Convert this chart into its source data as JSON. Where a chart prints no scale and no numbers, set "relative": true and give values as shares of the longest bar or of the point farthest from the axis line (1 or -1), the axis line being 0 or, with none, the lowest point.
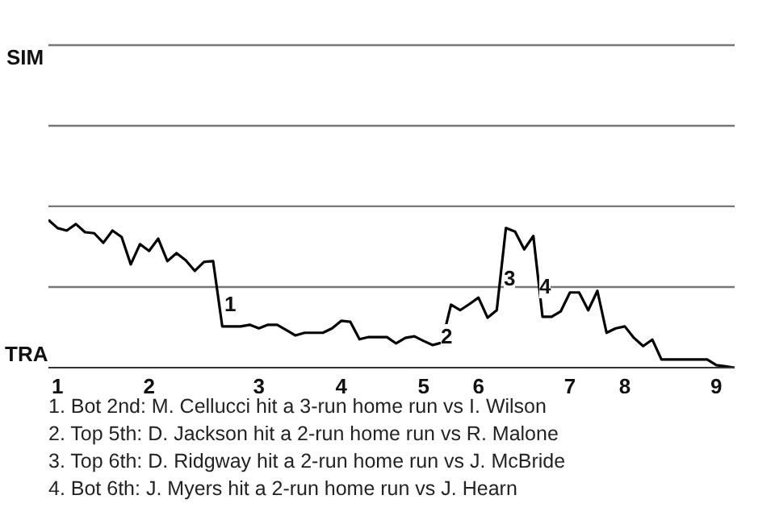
{
  "chart_data": {
    "type": "line",
    "relative": true,
    "categories": [
      null,
      "1",
      null,
      null,
      null,
      null,
      null,
      null,
      null,
      null,
      null,
      "2",
      null,
      null,
      null,
      null,
      null,
      null,
      null,
      null,
      null,
      null,
      null,
      "3",
      null,
      null,
      null,
      null,
      null,
      null,
      null,
      null,
      "4",
      null,
      null,
      null,
      null,
      null,
      null,
      null,
      null,
      "5",
      null,
      null,
      null,
      null,
      null,
      "6",
      null,
      null,
      null,
      null,
      null,
      null,
      null,
      null,
      null,
      "7",
      null,
      null,
      null,
      null,
      null,
      "8",
      null,
      null,
      null,
      null,
      null,
      null,
      null,
      null,
      null,
      "9",
      null,
      null
    ],
    "series": [
      {
        "color": "#000000",
        "values": [
          1,
          0.945,
          0.928,
          0.972,
          0.917,
          0.91,
          0.845,
          0.928,
          0.884,
          0.699,
          0.836,
          0.79,
          0.873,
          0.721,
          0.775,
          0.727,
          0.655,
          0.716,
          0.721,
          0.279,
          0.279,
          0.279,
          0.29,
          0.266,
          0.29,
          0.29,
          0.255,
          0.218,
          0.236,
          0.236,
          0.236,
          0.266,
          0.317,
          0.31,
          0.192,
          0.207,
          0.207,
          0.207,
          0.164,
          0.201,
          0.212,
          0.181,
          0.153,
          0.17,
          0.426,
          0.389,
          0.43,
          0.474,
          0.338,
          0.389,
          0.945,
          0.921,
          0.801,
          0.891,
          0.345,
          0.345,
          0.382,
          0.509,
          0.509,
          0.389,
          0.52,
          0.236,
          0.266,
          0.279,
          0.201,
          0.146,
          0.19,
          0.055,
          0.055,
          0.055,
          0.055,
          0.055,
          0.055,
          0.017,
          0.009,
          0
        ]
      }
    ],
    "ref_lines": [
      {
        "axis": "y",
        "value": 0.546,
        "color": "#777777"
      },
      {
        "axis": "y",
        "value": 1.092,
        "color": "#777777"
      },
      {
        "axis": "y",
        "value": 1.637,
        "color": "#777777"
      },
      {
        "axis": "y",
        "value": 2.183,
        "color": "#777777"
      }
    ],
    "marker": "none",
    "line_style": "solid",
    "annotations": [
      "SIM",
      "TRA",
      "1",
      "2",
      "3",
      "4",
      "1. Bot 2nd: M. Cellucci hit a 3-run home run vs I. Wilson",
      "2. Top 5th: D. Jackson hit a 2-run home run vs R. Malone",
      "3. Top 6th: D. Ridgway hit a 2-run home run vs J. McBride",
      "4. Bot 6th: J. Myers hit a 2-run home run vs J. Hearn"
    ]
  }
}
